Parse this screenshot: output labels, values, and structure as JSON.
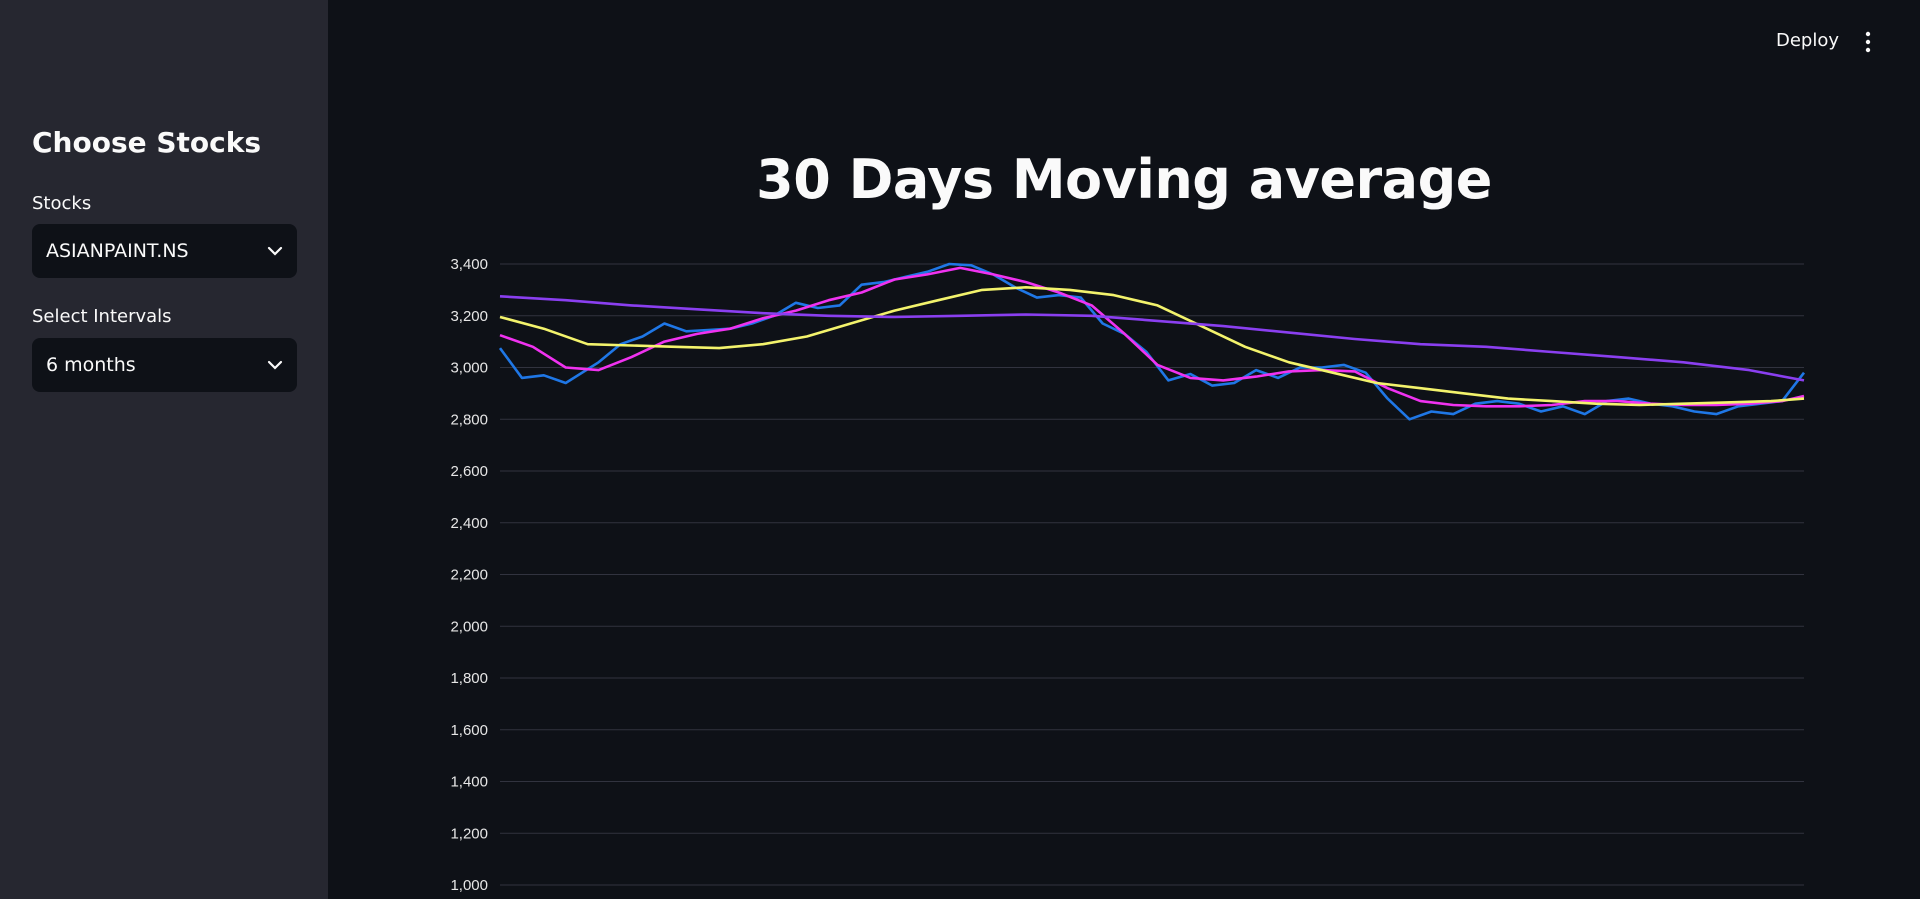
{
  "topbar": {
    "deploy_label": "Deploy",
    "menu_icon": "kebab-menu-icon"
  },
  "sidebar": {
    "title": "Choose Stocks",
    "stocks": {
      "label": "Stocks",
      "value": "ASIANPAINT.NS"
    },
    "intervals": {
      "label": "Select Intervals",
      "value": "6 months"
    }
  },
  "main": {
    "title": "30 Days Moving average"
  },
  "colors": {
    "blue": "#1f77e6",
    "magenta": "#f032f0",
    "yellow": "#f3f36c",
    "purple": "#8a3ff0"
  },
  "chart_data": {
    "type": "line",
    "title": "",
    "xlabel": "",
    "ylabel": "",
    "ylim": [
      1000,
      3450
    ],
    "yticks": [
      "1,000",
      "1,200",
      "1,400",
      "1,600",
      "1,800",
      "2,000",
      "2,200",
      "2,400",
      "2,600",
      "2,800",
      "3,000",
      "3,200",
      "3,400"
    ],
    "grid": true,
    "x_count": 120,
    "series": [
      {
        "color": "#1f77e6",
        "key_points": [
          [
            0,
            3075
          ],
          [
            2,
            2960
          ],
          [
            4,
            2970
          ],
          [
            6,
            2940
          ],
          [
            9,
            3020
          ],
          [
            11,
            3090
          ],
          [
            13,
            3120
          ],
          [
            15,
            3170
          ],
          [
            17,
            3140
          ],
          [
            19,
            3145
          ],
          [
            21,
            3150
          ],
          [
            23,
            3170
          ],
          [
            25,
            3200
          ],
          [
            27,
            3250
          ],
          [
            29,
            3230
          ],
          [
            31,
            3240
          ],
          [
            33,
            3320
          ],
          [
            35,
            3330
          ],
          [
            37,
            3350
          ],
          [
            39,
            3370
          ],
          [
            41,
            3400
          ],
          [
            43,
            3395
          ],
          [
            45,
            3360
          ],
          [
            47,
            3310
          ],
          [
            49,
            3270
          ],
          [
            51,
            3280
          ],
          [
            53,
            3270
          ],
          [
            55,
            3170
          ],
          [
            57,
            3130
          ],
          [
            59,
            3060
          ],
          [
            61,
            2950
          ],
          [
            63,
            2975
          ],
          [
            65,
            2930
          ],
          [
            67,
            2940
          ],
          [
            69,
            2990
          ],
          [
            71,
            2960
          ],
          [
            73,
            3000
          ],
          [
            75,
            3000
          ],
          [
            77,
            3010
          ],
          [
            79,
            2980
          ],
          [
            81,
            2880
          ],
          [
            83,
            2800
          ],
          [
            85,
            2830
          ],
          [
            87,
            2820
          ],
          [
            89,
            2860
          ],
          [
            91,
            2870
          ],
          [
            93,
            2860
          ],
          [
            95,
            2830
          ],
          [
            97,
            2850
          ],
          [
            99,
            2820
          ],
          [
            101,
            2870
          ],
          [
            103,
            2880
          ],
          [
            105,
            2860
          ],
          [
            107,
            2850
          ],
          [
            109,
            2830
          ],
          [
            111,
            2820
          ],
          [
            113,
            2850
          ],
          [
            115,
            2860
          ],
          [
            117,
            2870
          ],
          [
            119,
            2980
          ]
        ]
      },
      {
        "color": "#f032f0",
        "key_points": [
          [
            0,
            3125
          ],
          [
            3,
            3080
          ],
          [
            6,
            3000
          ],
          [
            9,
            2990
          ],
          [
            12,
            3040
          ],
          [
            15,
            3100
          ],
          [
            18,
            3130
          ],
          [
            21,
            3150
          ],
          [
            24,
            3190
          ],
          [
            27,
            3220
          ],
          [
            30,
            3260
          ],
          [
            33,
            3290
          ],
          [
            36,
            3340
          ],
          [
            39,
            3360
          ],
          [
            42,
            3385
          ],
          [
            45,
            3360
          ],
          [
            48,
            3330
          ],
          [
            51,
            3290
          ],
          [
            54,
            3240
          ],
          [
            57,
            3130
          ],
          [
            60,
            3010
          ],
          [
            63,
            2960
          ],
          [
            66,
            2950
          ],
          [
            69,
            2965
          ],
          [
            72,
            2985
          ],
          [
            75,
            2990
          ],
          [
            78,
            2985
          ],
          [
            81,
            2920
          ],
          [
            84,
            2870
          ],
          [
            87,
            2855
          ],
          [
            90,
            2850
          ],
          [
            93,
            2850
          ],
          [
            96,
            2855
          ],
          [
            99,
            2870
          ],
          [
            102,
            2870
          ],
          [
            105,
            2860
          ],
          [
            108,
            2855
          ],
          [
            111,
            2855
          ],
          [
            114,
            2860
          ],
          [
            117,
            2870
          ],
          [
            119,
            2890
          ]
        ]
      },
      {
        "color": "#f3f36c",
        "key_points": [
          [
            0,
            3195
          ],
          [
            4,
            3150
          ],
          [
            8,
            3090
          ],
          [
            12,
            3085
          ],
          [
            16,
            3080
          ],
          [
            20,
            3075
          ],
          [
            24,
            3090
          ],
          [
            28,
            3120
          ],
          [
            32,
            3170
          ],
          [
            36,
            3220
          ],
          [
            40,
            3260
          ],
          [
            44,
            3300
          ],
          [
            48,
            3310
          ],
          [
            52,
            3300
          ],
          [
            56,
            3280
          ],
          [
            60,
            3240
          ],
          [
            64,
            3160
          ],
          [
            68,
            3080
          ],
          [
            72,
            3020
          ],
          [
            76,
            2980
          ],
          [
            80,
            2940
          ],
          [
            84,
            2920
          ],
          [
            88,
            2900
          ],
          [
            92,
            2880
          ],
          [
            96,
            2870
          ],
          [
            100,
            2860
          ],
          [
            104,
            2855
          ],
          [
            108,
            2860
          ],
          [
            112,
            2865
          ],
          [
            116,
            2870
          ],
          [
            119,
            2880
          ]
        ]
      },
      {
        "color": "#8a3ff0",
        "key_points": [
          [
            0,
            3275
          ],
          [
            6,
            3260
          ],
          [
            12,
            3240
          ],
          [
            18,
            3225
          ],
          [
            24,
            3210
          ],
          [
            30,
            3200
          ],
          [
            36,
            3195
          ],
          [
            42,
            3200
          ],
          [
            48,
            3205
          ],
          [
            54,
            3200
          ],
          [
            60,
            3180
          ],
          [
            66,
            3160
          ],
          [
            72,
            3135
          ],
          [
            78,
            3110
          ],
          [
            84,
            3090
          ],
          [
            90,
            3080
          ],
          [
            96,
            3060
          ],
          [
            102,
            3040
          ],
          [
            108,
            3020
          ],
          [
            114,
            2990
          ],
          [
            119,
            2950
          ]
        ]
      }
    ]
  }
}
